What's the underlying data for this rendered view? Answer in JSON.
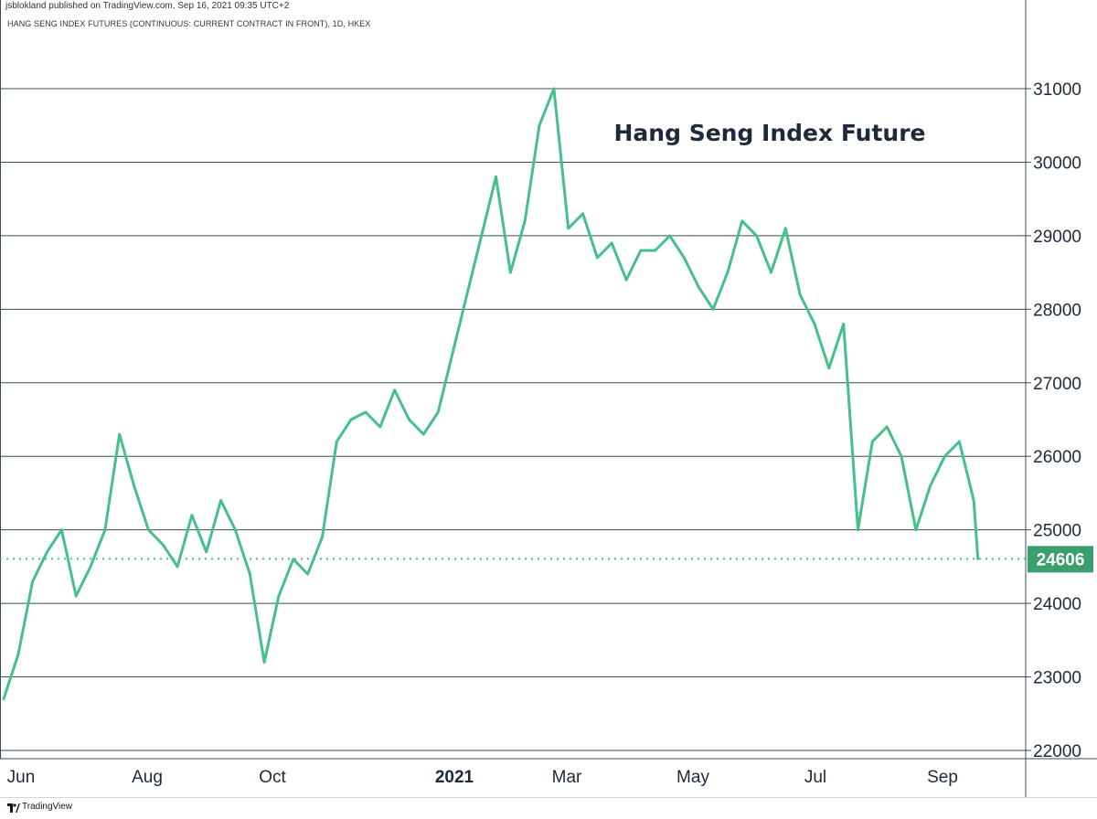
{
  "header": {
    "publisher": "jsblokland published on TradingView.com, Sep 16, 2021 09:35 UTC+2",
    "symbol": "HANG SENG INDEX FUTURES (CONTINUOUS: CURRENT CONTRACT IN FRONT), 1D, HKEX"
  },
  "footer": {
    "brand": "TradingView",
    "logo_icon": "tradingview-logo-icon"
  },
  "colors": {
    "line": "#45c08a",
    "grid": "#3b4a5a",
    "text": "#131722",
    "badge_bg": "#3a9e6e",
    "badge_text": "#ffffff"
  },
  "chart_data": {
    "type": "line",
    "title": "Hang Seng Index Future",
    "xlabel": "",
    "ylabel": "",
    "ylim": [
      22000,
      31300
    ],
    "y_ticks": [
      "31000",
      "30000",
      "29000",
      "28000",
      "27000",
      "26000",
      "25000",
      "24000",
      "23000",
      "22000"
    ],
    "x_tick_labels": [
      "Jun",
      "Aug",
      "Oct",
      "2021",
      "Mar",
      "May",
      "Jul",
      "Sep"
    ],
    "last_price": 24606,
    "last_price_label": "24606",
    "grid": "horizontal",
    "series": [
      {
        "x": [
          "2020-06-01",
          "2020-06-08",
          "2020-06-15",
          "2020-06-22",
          "2020-06-29",
          "2020-07-06",
          "2020-07-13",
          "2020-07-20",
          "2020-07-27",
          "2020-08-03",
          "2020-08-10",
          "2020-08-17",
          "2020-08-24",
          "2020-08-31",
          "2020-09-07",
          "2020-09-14",
          "2020-09-21",
          "2020-09-28",
          "2020-10-05",
          "2020-10-12",
          "2020-10-19",
          "2020-10-26",
          "2020-11-02",
          "2020-11-09",
          "2020-11-16",
          "2020-11-23",
          "2020-11-30",
          "2020-12-07",
          "2020-12-14",
          "2020-12-21",
          "2020-12-28",
          "2021-01-04",
          "2021-01-11",
          "2021-01-18",
          "2021-01-25",
          "2021-02-01",
          "2021-02-08",
          "2021-02-15",
          "2021-02-22",
          "2021-03-01",
          "2021-03-08",
          "2021-03-15",
          "2021-03-22",
          "2021-03-29",
          "2021-04-05",
          "2021-04-12",
          "2021-04-19",
          "2021-04-26",
          "2021-05-03",
          "2021-05-10",
          "2021-05-17",
          "2021-05-24",
          "2021-05-31",
          "2021-06-07",
          "2021-06-14",
          "2021-06-21",
          "2021-06-28",
          "2021-07-05",
          "2021-07-12",
          "2021-07-19",
          "2021-07-26",
          "2021-08-02",
          "2021-08-09",
          "2021-08-16",
          "2021-08-23",
          "2021-08-30",
          "2021-09-06",
          "2021-09-13",
          "2021-09-15"
        ],
        "values": [
          22700,
          23300,
          24300,
          24700,
          25000,
          24100,
          24500,
          25000,
          26300,
          25600,
          25000,
          24800,
          24500,
          25200,
          24700,
          25400,
          25000,
          24400,
          23200,
          24100,
          24600,
          24400,
          24900,
          26200,
          26500,
          26600,
          26400,
          26900,
          26500,
          26300,
          26600,
          27400,
          28200,
          29000,
          29800,
          28500,
          29200,
          30500,
          31000,
          29100,
          29300,
          28700,
          28900,
          28400,
          28800,
          28800,
          29000,
          28700,
          28300,
          28000,
          28500,
          29200,
          29000,
          28500,
          29100,
          28200,
          27800,
          27200,
          27800,
          25000,
          26200,
          26400,
          26000,
          25000,
          25600,
          26000,
          26200,
          25400,
          24606
        ]
      }
    ]
  }
}
